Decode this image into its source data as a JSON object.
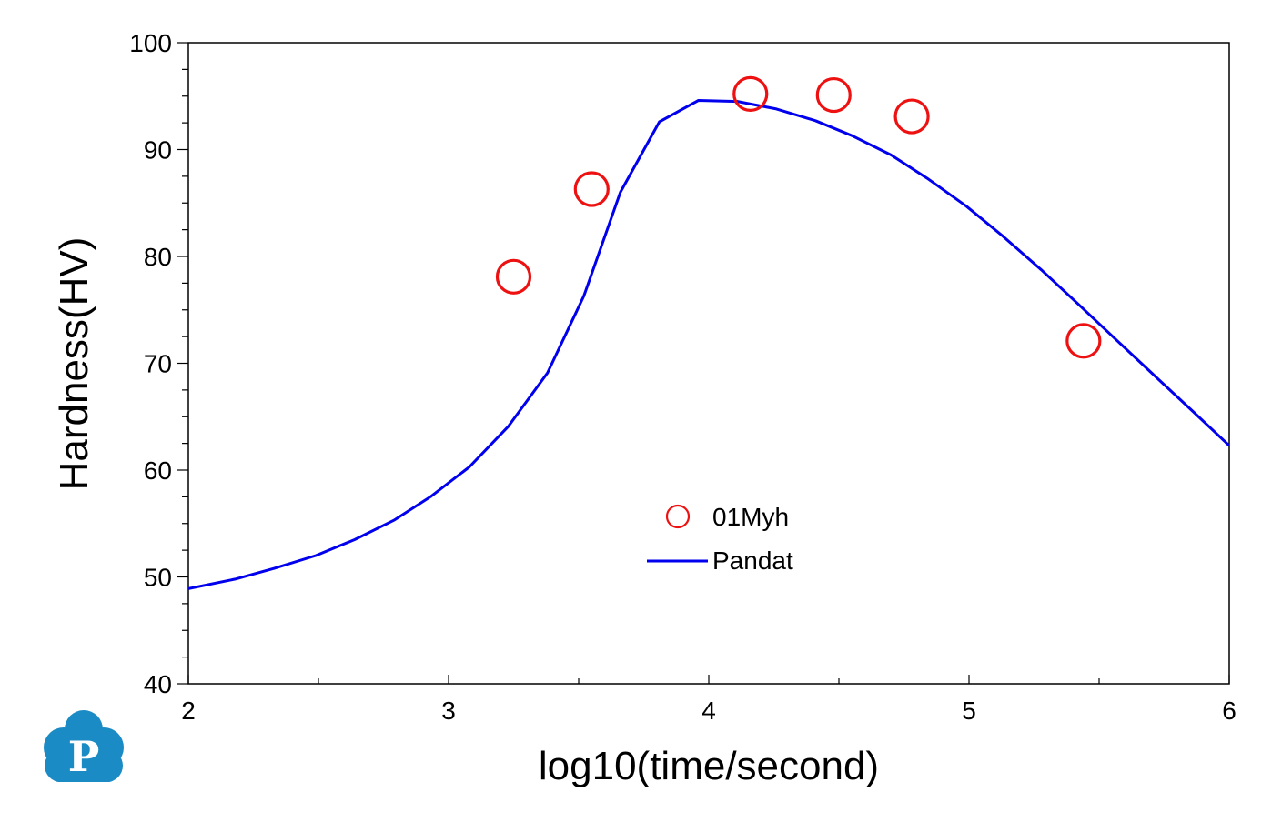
{
  "chart_data": {
    "type": "line",
    "title": "",
    "xlabel": "log10(time/second)",
    "ylabel": "Hardness(HV)",
    "xlim": [
      2,
      6
    ],
    "ylim": [
      40,
      100
    ],
    "x_ticks": [
      "2",
      "3",
      "4",
      "5",
      "6"
    ],
    "y_ticks": [
      "40",
      "50",
      "60",
      "70",
      "80",
      "90",
      "100"
    ],
    "grid": false,
    "legend_position": "center",
    "series": [
      {
        "name": "01Myh",
        "kind": "scatter",
        "marker": "open-circle",
        "color": "#ee1111",
        "points": [
          {
            "x": 3.25,
            "y": 78.1
          },
          {
            "x": 3.55,
            "y": 86.3
          },
          {
            "x": 4.16,
            "y": 95.2
          },
          {
            "x": 4.48,
            "y": 95.1
          },
          {
            "x": 4.78,
            "y": 93.1
          },
          {
            "x": 5.44,
            "y": 72.1
          }
        ]
      },
      {
        "name": "Pandat",
        "kind": "line",
        "color": "#0000ee",
        "points": [
          {
            "x": 2.0,
            "y": 48.9
          },
          {
            "x": 2.18,
            "y": 49.8
          },
          {
            "x": 2.33,
            "y": 50.8
          },
          {
            "x": 2.49,
            "y": 52.0
          },
          {
            "x": 2.64,
            "y": 53.5
          },
          {
            "x": 2.79,
            "y": 55.3
          },
          {
            "x": 2.93,
            "y": 57.5
          },
          {
            "x": 3.08,
            "y": 60.3
          },
          {
            "x": 3.23,
            "y": 64.1
          },
          {
            "x": 3.38,
            "y": 69.1
          },
          {
            "x": 3.52,
            "y": 76.3
          },
          {
            "x": 3.66,
            "y": 86.0
          },
          {
            "x": 3.81,
            "y": 92.6
          },
          {
            "x": 3.96,
            "y": 94.6
          },
          {
            "x": 4.11,
            "y": 94.5
          },
          {
            "x": 4.26,
            "y": 93.8
          },
          {
            "x": 4.41,
            "y": 92.7
          },
          {
            "x": 4.55,
            "y": 91.3
          },
          {
            "x": 4.7,
            "y": 89.5
          },
          {
            "x": 4.84,
            "y": 87.3
          },
          {
            "x": 4.99,
            "y": 84.7
          },
          {
            "x": 5.13,
            "y": 81.9
          },
          {
            "x": 5.28,
            "y": 78.7
          },
          {
            "x": 5.43,
            "y": 75.3
          },
          {
            "x": 5.57,
            "y": 72.1
          },
          {
            "x": 5.71,
            "y": 68.9
          },
          {
            "x": 5.86,
            "y": 65.5
          },
          {
            "x": 6.0,
            "y": 62.3
          }
        ]
      }
    ]
  },
  "logo": {
    "letter": "P",
    "icon": "pandat-cloud-logo",
    "color": "#1a8bc4"
  }
}
